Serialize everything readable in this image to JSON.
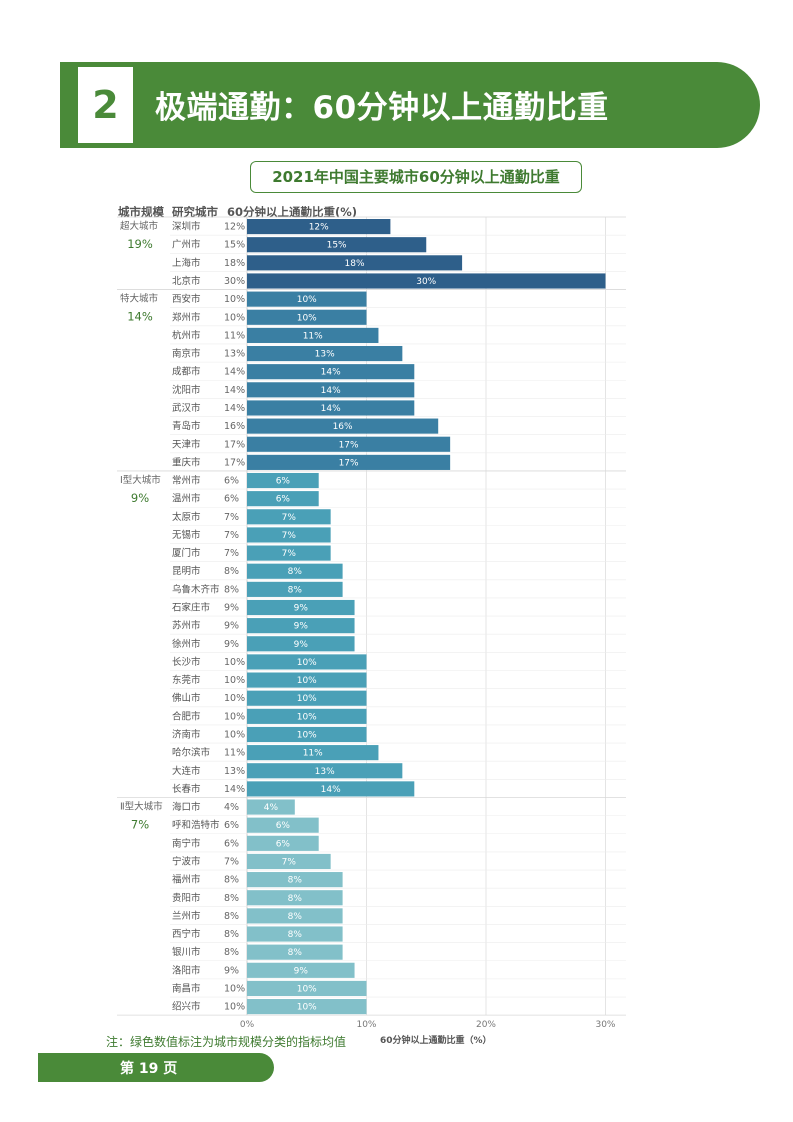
{
  "header": {
    "section_number": "2",
    "title": "极端通勤：60分钟以上通勤比重"
  },
  "column_headers": {
    "tier": "城市规模",
    "city": "研究城市",
    "value": "60分钟以上通勤比重(%)"
  },
  "footnote": "注：绿色数值标注为城市规模分类的指标均值",
  "page_label": "第 19 页",
  "colors": {
    "brand_green": "#4a8a39",
    "tier_avg_text": "#3e7a2f",
    "tier_colors": [
      "#2e5f8a",
      "#3a7fa3",
      "#4aa0b7",
      "#82c0c9"
    ]
  },
  "chart_data": {
    "type": "bar",
    "orientation": "horizontal",
    "title": "2021年中国主要城市60分钟以上通勤比重",
    "xlabel": "60分钟以上通勤比重（%）",
    "xlim": [
      0,
      31
    ],
    "xticks": [
      0,
      10,
      20,
      30
    ],
    "xtick_labels": [
      "0%",
      "10%",
      "20%",
      "30%"
    ],
    "grid": true,
    "groups": [
      {
        "tier": "超大城市",
        "average": "19%",
        "cities": [
          {
            "name": "深圳市",
            "value": 12
          },
          {
            "name": "广州市",
            "value": 15
          },
          {
            "name": "上海市",
            "value": 18
          },
          {
            "name": "北京市",
            "value": 30
          }
        ]
      },
      {
        "tier": "特大城市",
        "average": "14%",
        "cities": [
          {
            "name": "西安市",
            "value": 10
          },
          {
            "name": "郑州市",
            "value": 10
          },
          {
            "name": "杭州市",
            "value": 11
          },
          {
            "name": "南京市",
            "value": 13
          },
          {
            "name": "成都市",
            "value": 14
          },
          {
            "name": "沈阳市",
            "value": 14
          },
          {
            "name": "武汉市",
            "value": 14
          },
          {
            "name": "青岛市",
            "value": 16
          },
          {
            "name": "天津市",
            "value": 17
          },
          {
            "name": "重庆市",
            "value": 17
          }
        ]
      },
      {
        "tier": "Ⅰ型大城市",
        "average": "9%",
        "cities": [
          {
            "name": "常州市",
            "value": 6
          },
          {
            "name": "温州市",
            "value": 6
          },
          {
            "name": "太原市",
            "value": 7
          },
          {
            "name": "无锡市",
            "value": 7
          },
          {
            "name": "厦门市",
            "value": 7
          },
          {
            "name": "昆明市",
            "value": 8
          },
          {
            "name": "乌鲁木齐市",
            "value": 8
          },
          {
            "name": "石家庄市",
            "value": 9
          },
          {
            "name": "苏州市",
            "value": 9
          },
          {
            "name": "徐州市",
            "value": 9
          },
          {
            "name": "长沙市",
            "value": 10
          },
          {
            "name": "东莞市",
            "value": 10
          },
          {
            "name": "佛山市",
            "value": 10
          },
          {
            "name": "合肥市",
            "value": 10
          },
          {
            "name": "济南市",
            "value": 10
          },
          {
            "name": "哈尔滨市",
            "value": 11
          },
          {
            "name": "大连市",
            "value": 13
          },
          {
            "name": "长春市",
            "value": 14
          }
        ]
      },
      {
        "tier": "Ⅱ型大城市",
        "average": "7%",
        "cities": [
          {
            "name": "海口市",
            "value": 4
          },
          {
            "name": "呼和浩特市",
            "value": 6
          },
          {
            "name": "南宁市",
            "value": 6
          },
          {
            "name": "宁波市",
            "value": 7
          },
          {
            "name": "福州市",
            "value": 8
          },
          {
            "name": "贵阳市",
            "value": 8
          },
          {
            "name": "兰州市",
            "value": 8
          },
          {
            "name": "西宁市",
            "value": 8
          },
          {
            "name": "银川市",
            "value": 8
          },
          {
            "name": "洛阳市",
            "value": 9
          },
          {
            "name": "南昌市",
            "value": 10
          },
          {
            "name": "绍兴市",
            "value": 10
          }
        ]
      }
    ]
  }
}
